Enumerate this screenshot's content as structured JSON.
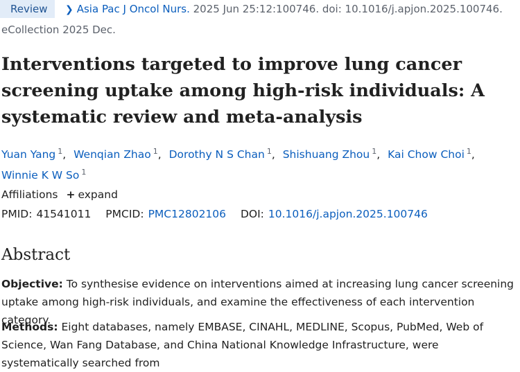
{
  "header": {
    "badge": "Review",
    "journal": "Asia Pac J Oncol Nurs.",
    "citation_rest": " 2025 Jun 25:12:100746. doi: 10.1016/j.apjon.2025.100746.",
    "ecollection": "eCollection 2025 Dec."
  },
  "article": {
    "title": "Interventions targeted to improve lung cancer screening uptake among high-risk individuals: A systematic review and meta-analysis",
    "authors": [
      {
        "name": "Yuan Yang",
        "aff": "1"
      },
      {
        "name": "Wenqian Zhao",
        "aff": "1"
      },
      {
        "name": "Dorothy N S Chan",
        "aff": "1"
      },
      {
        "name": "Shishuang Zhou",
        "aff": "1"
      },
      {
        "name": "Kai Chow Choi",
        "aff": "1"
      },
      {
        "name": "Winnie K W So",
        "aff": "1"
      }
    ],
    "author_sep": ",",
    "affiliations_label": "Affiliations",
    "expand_label": "expand",
    "pmid_label": "PMID:",
    "pmid": "41541011",
    "pmcid_label": "PMCID:",
    "pmcid": "PMC12802106",
    "doi_label": "DOI:",
    "doi": "10.1016/j.apjon.2025.100746"
  },
  "abstract": {
    "heading": "Abstract",
    "objective_label": "Objective:",
    "objective_text": " To synthesise evidence on interventions aimed at increasing lung cancer screening uptake among high-risk individuals, and examine the effectiveness of each intervention category.",
    "methods_label": "Methods:",
    "methods_text": " Eight databases, namely EMBASE, CINAHL, MEDLINE, Scopus, PubMed, Web of Science, Wan Fang Database, and China National Knowledge Infrastructure, were systematically searched from"
  }
}
